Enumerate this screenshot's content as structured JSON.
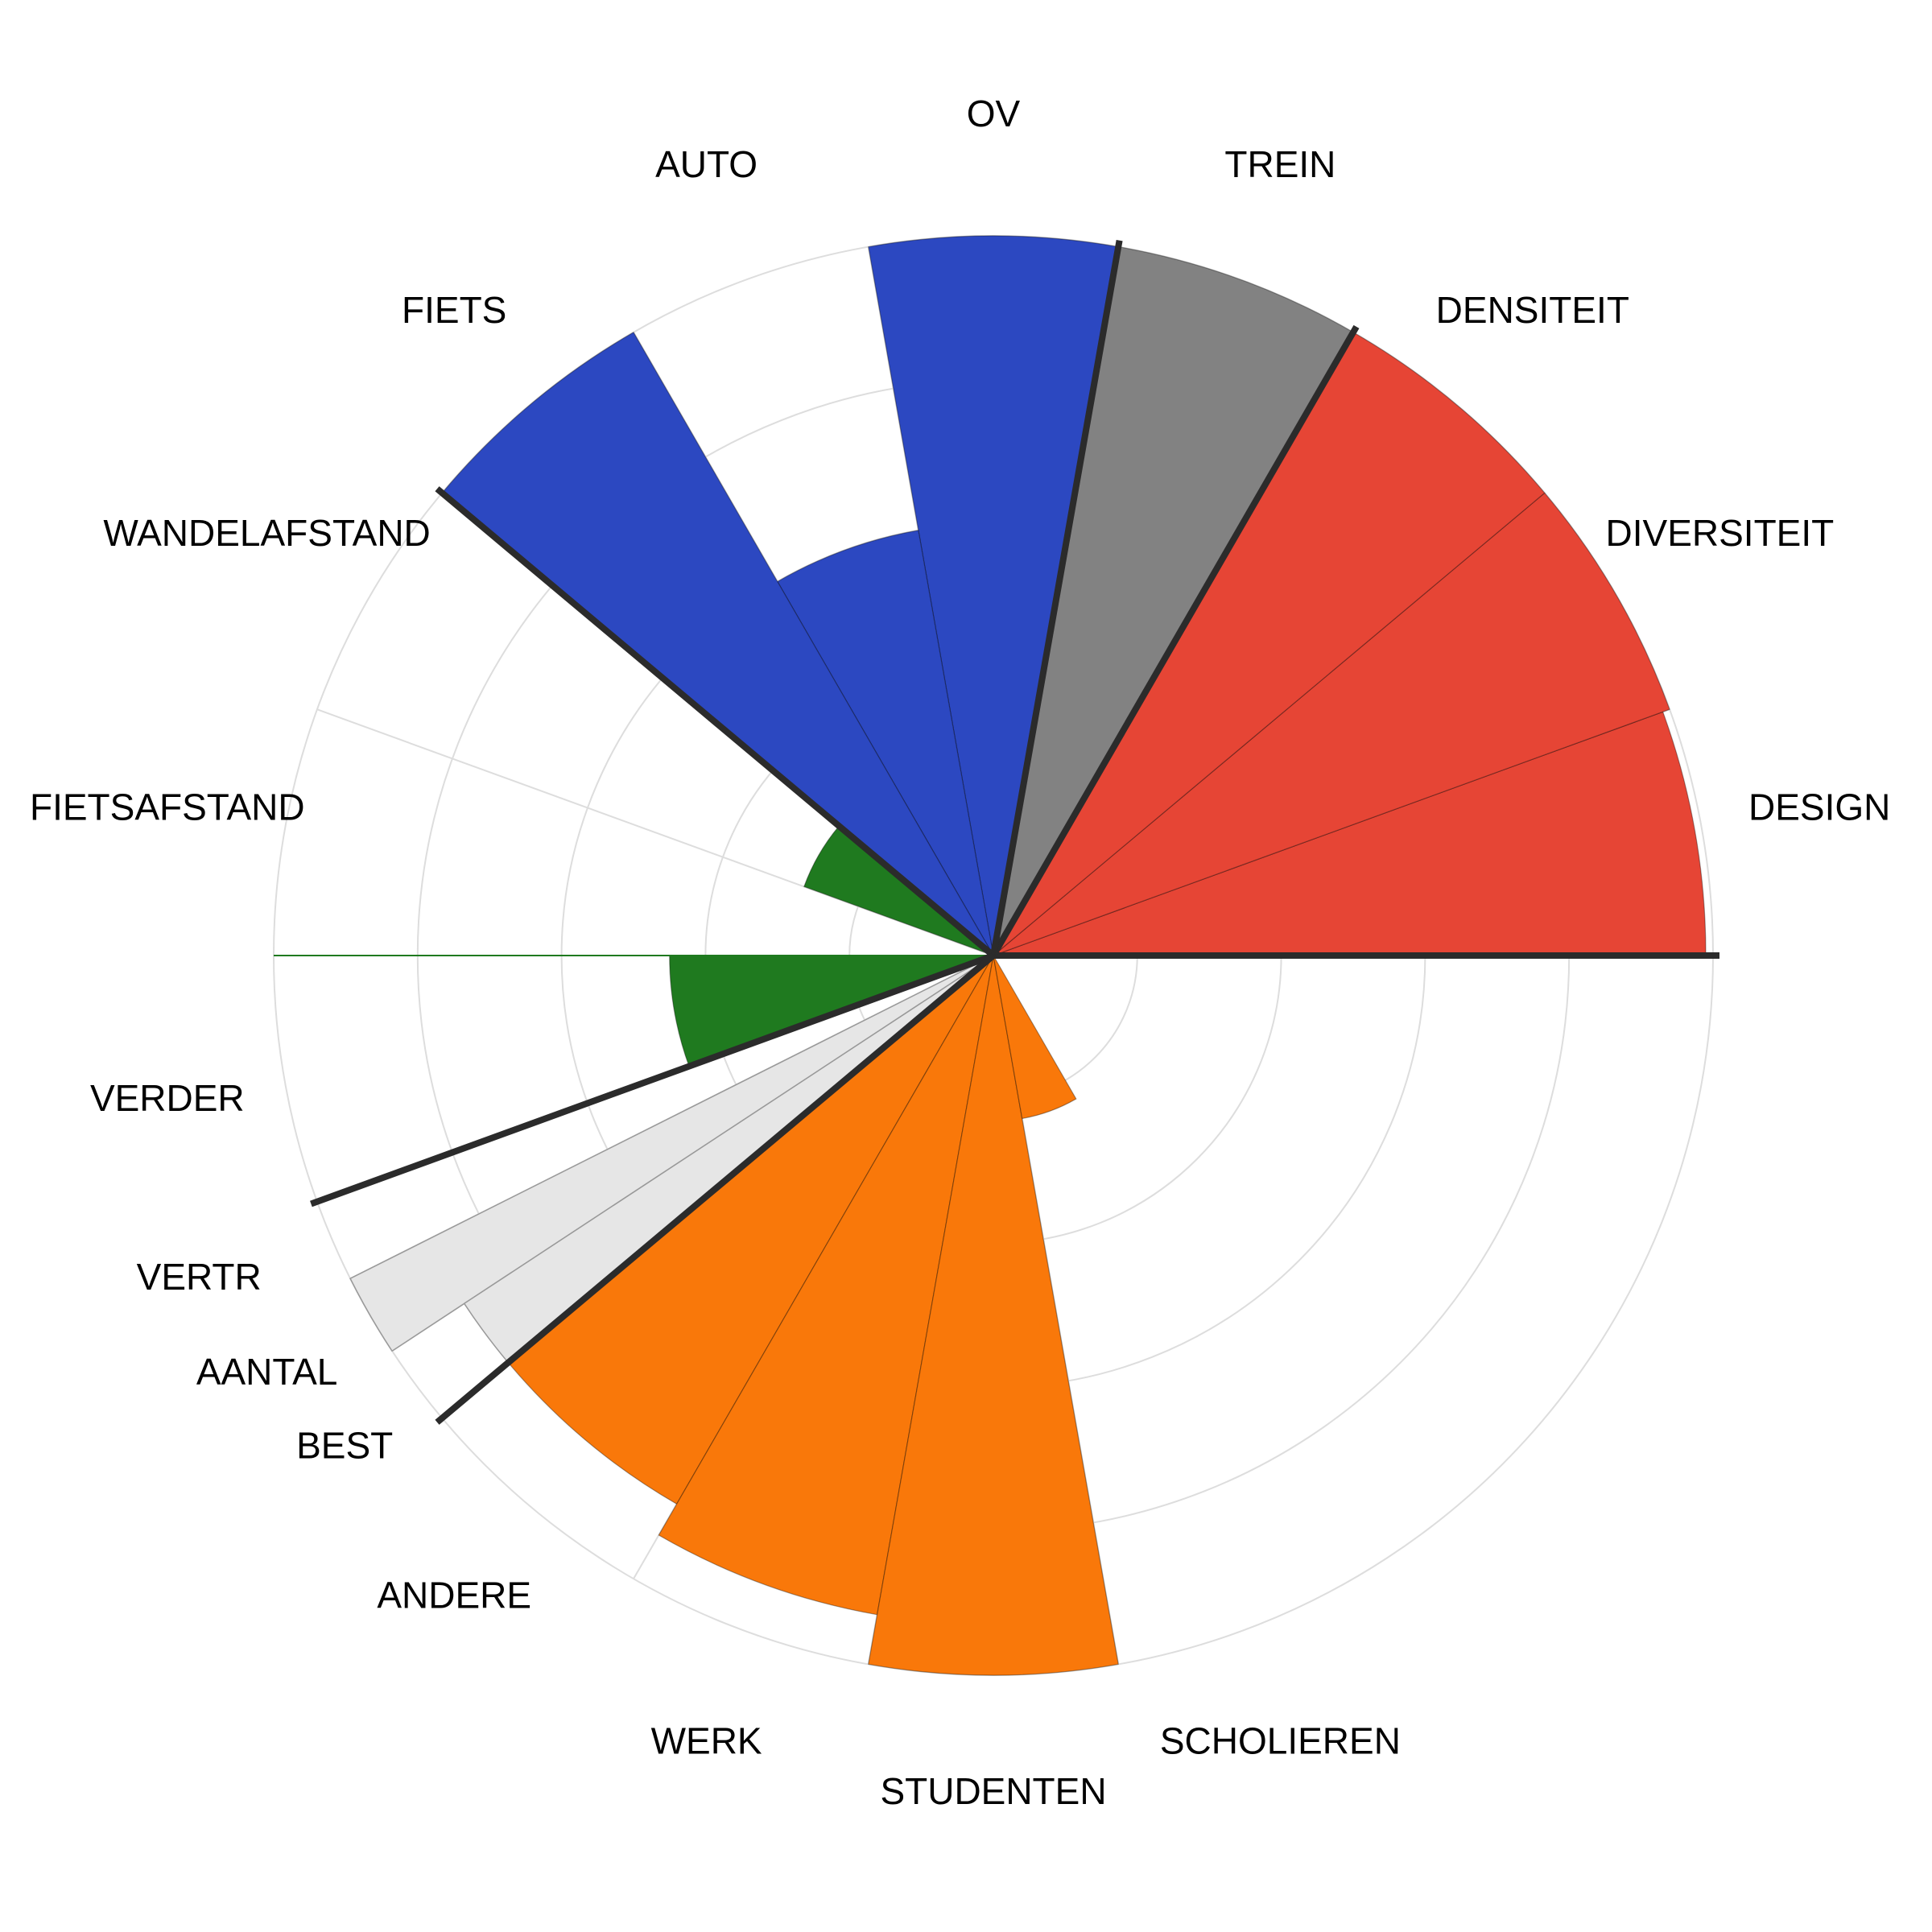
{
  "chart_data": {
    "type": "polar-bar",
    "title": "",
    "rmax": 1,
    "categories": [
      "DESIGN",
      "DIVERSITEIT",
      "DENSITEIT",
      "TREIN",
      "OV",
      "AUTO",
      "FIETS",
      "WANDELAFSTAND",
      "FIETSAFSTAND",
      "VERDER",
      "VERTR",
      "AANTAL",
      "BEST",
      "ANDERE",
      "WERK",
      "STUDENTEN",
      "SCHOLIEREN"
    ],
    "values": [
      0.99,
      1.0,
      1.0,
      1.0,
      1.0,
      0.6,
      1.0,
      0.28,
      0.0,
      0.45,
      0.0,
      0.0,
      0.0,
      0.88,
      0.93,
      1.0,
      0.23
    ],
    "shadow_values": [
      null,
      null,
      null,
      null,
      null,
      null,
      null,
      null,
      null,
      null,
      0.05,
      1.0,
      0.88,
      null,
      null,
      null,
      null
    ],
    "groups": [
      {
        "color": "#e64535",
        "categories": [
          "DESIGN",
          "DIVERSITEIT",
          "DENSITEIT"
        ]
      },
      {
        "color": "#828282",
        "categories": [
          "TREIN"
        ]
      },
      {
        "color": "#2c48c1",
        "categories": [
          "OV",
          "AUTO",
          "FIETS"
        ]
      },
      {
        "color": "#1f7a1f",
        "categories": [
          "WANDELAFSTAND",
          "FIETSAFSTAND",
          "VERDER"
        ]
      },
      {
        "color": "#e6e6e6",
        "categories": [
          "VERTR",
          "AANTAL",
          "BEST"
        ]
      },
      {
        "color": "#f9780a",
        "categories": [
          "ANDERE",
          "WERK",
          "STUDENTEN",
          "SCHOLIEREN"
        ]
      }
    ],
    "grid": true,
    "grid_rings": [
      0.2,
      0.4,
      0.6,
      0.8,
      1.0
    ],
    "legend": "none"
  }
}
